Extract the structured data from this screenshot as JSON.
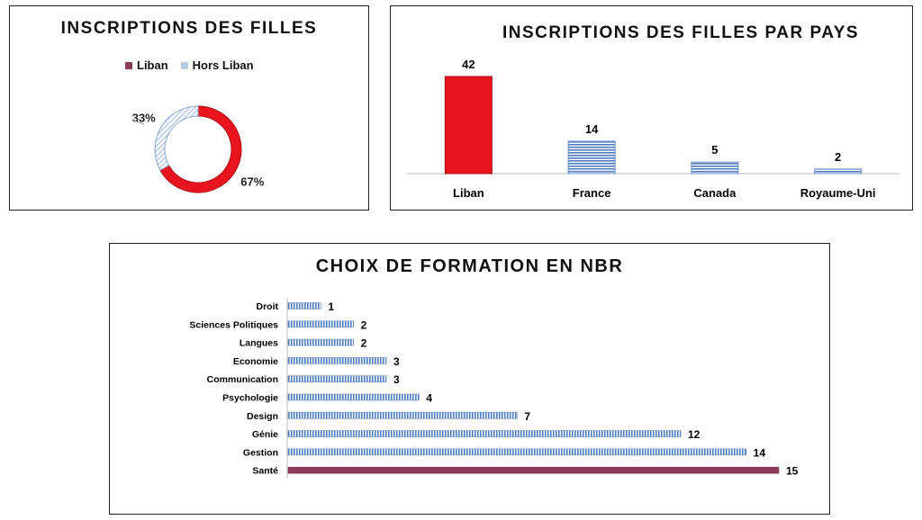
{
  "colors": {
    "liban": "#e8141e",
    "liban_legend": "#8b3a5a",
    "blue": "#4f7cc0",
    "light_blue": "#b8cce6",
    "sante": "#8b3a5a"
  },
  "chart_data": [
    {
      "type": "pie",
      "variant": "donut",
      "title": "INSCRIPTIONS DES FILLES",
      "legend": [
        "Liban",
        "Hors Liban"
      ],
      "legend_position": "top",
      "slices": [
        {
          "label": "Liban",
          "value": 67,
          "display": "67%"
        },
        {
          "label": "Hors Liban",
          "value": 33,
          "display": "33%"
        }
      ]
    },
    {
      "type": "bar",
      "orientation": "vertical",
      "title": "INSCRIPTIONS DES FILLES PAR PAYS",
      "categories": [
        "Liban",
        "France",
        "Canada",
        "Royaume-Uni"
      ],
      "values": [
        42,
        14,
        5,
        2
      ],
      "ylim": [
        0,
        42
      ],
      "grid": false
    },
    {
      "type": "bar",
      "orientation": "horizontal",
      "title": "CHOIX DE FORMATION EN NBR",
      "categories": [
        "Droit",
        "Sciences Politiques",
        "Langues",
        "Economie",
        "Communication",
        "Psychologie",
        "Design",
        "Génie",
        "Gestion",
        "Santé"
      ],
      "values": [
        1,
        2,
        2,
        3,
        3,
        4,
        7,
        12,
        14,
        15
      ],
      "xlim": [
        0,
        15
      ],
      "grid": false
    }
  ]
}
